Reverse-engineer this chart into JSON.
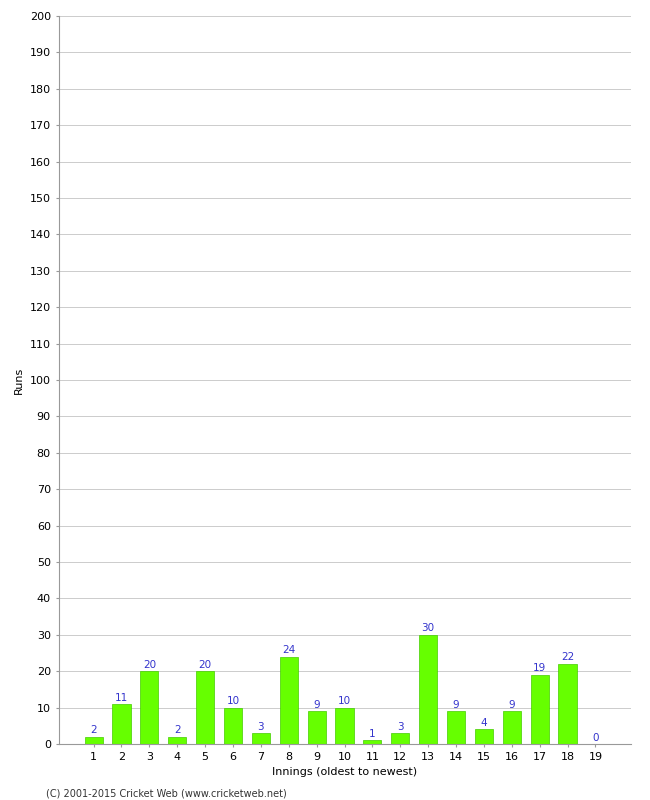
{
  "title": "",
  "xlabel": "Innings (oldest to newest)",
  "ylabel": "Runs",
  "innings": [
    1,
    2,
    3,
    4,
    5,
    6,
    7,
    8,
    9,
    10,
    11,
    12,
    13,
    14,
    15,
    16,
    17,
    18,
    19
  ],
  "values": [
    2,
    11,
    20,
    2,
    20,
    10,
    3,
    24,
    9,
    10,
    1,
    3,
    30,
    9,
    4,
    9,
    19,
    22,
    0
  ],
  "bar_color": "#66ff00",
  "bar_edge_color": "#44cc00",
  "label_color": "#3333cc",
  "ylim": [
    0,
    200
  ],
  "yticks": [
    0,
    10,
    20,
    30,
    40,
    50,
    60,
    70,
    80,
    90,
    100,
    110,
    120,
    130,
    140,
    150,
    160,
    170,
    180,
    190,
    200
  ],
  "background_color": "#ffffff",
  "footer": "(C) 2001-2015 Cricket Web (www.cricketweb.net)",
  "grid_color": "#cccccc",
  "label_fontsize": 7.5,
  "tick_fontsize": 8,
  "xlabel_fontsize": 8,
  "ylabel_fontsize": 8,
  "footer_fontsize": 7,
  "bar_width": 0.65
}
